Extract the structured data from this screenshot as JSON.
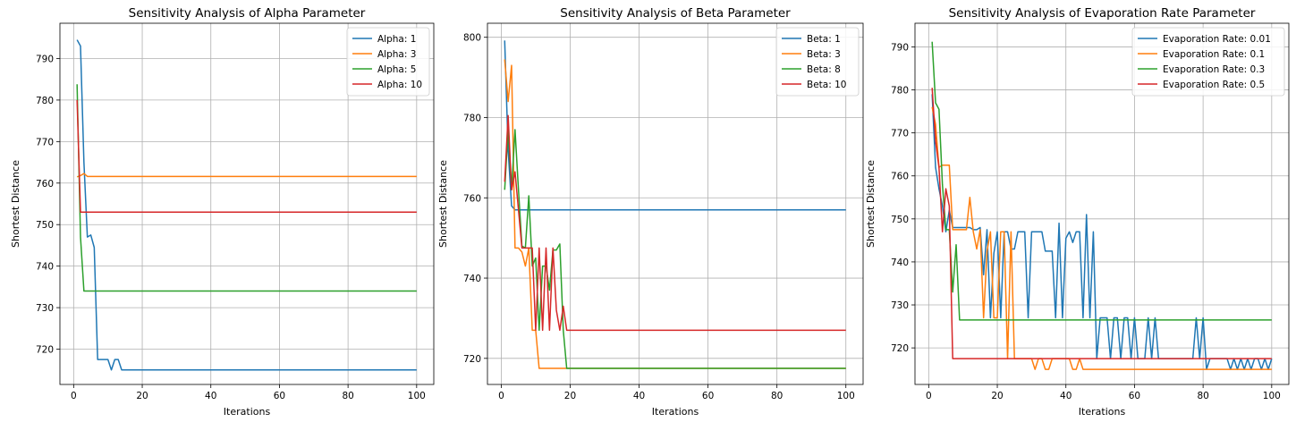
{
  "chart_data": [
    {
      "type": "line",
      "title": "Sensitivity Analysis of Alpha Parameter",
      "xlabel": "Iterations",
      "ylabel": "Shortest Distance",
      "xlim": [
        -4,
        105
      ],
      "ylim": [
        711.5,
        798.5
      ],
      "xticks": [
        0,
        20,
        40,
        60,
        80,
        100
      ],
      "yticks": [
        720,
        730,
        740,
        750,
        760,
        770,
        780,
        790
      ],
      "grid": true,
      "legend": "top-right",
      "series": [
        {
          "name": "Alpha: 1",
          "color": "#1f77b4",
          "points": [
            [
              1,
              794.5
            ],
            [
              2,
              793
            ],
            [
              3,
              765
            ],
            [
              4,
              747
            ],
            [
              5,
              747.5
            ],
            [
              6,
              744.5
            ],
            [
              7,
              717.5
            ],
            [
              8,
              717.5
            ],
            [
              9,
              717.5
            ],
            [
              10,
              717.5
            ],
            [
              11,
              715
            ],
            [
              12,
              717.5
            ],
            [
              13,
              717.5
            ],
            [
              14,
              715
            ],
            [
              100,
              715
            ]
          ]
        },
        {
          "name": "Alpha: 3",
          "color": "#ff7f0e",
          "points": [
            [
              1,
              761.5
            ],
            [
              2,
              761.8
            ],
            [
              3,
              762.3
            ],
            [
              4,
              761.6
            ],
            [
              100,
              761.6
            ]
          ]
        },
        {
          "name": "Alpha: 5",
          "color": "#2ca02c",
          "points": [
            [
              1,
              783.8
            ],
            [
              2,
              747
            ],
            [
              3,
              734
            ],
            [
              100,
              734
            ]
          ]
        },
        {
          "name": "Alpha: 10",
          "color": "#d62728",
          "points": [
            [
              1,
              780
            ],
            [
              2,
              753
            ],
            [
              100,
              753
            ]
          ]
        }
      ]
    },
    {
      "type": "line",
      "title": "Sensitivity Analysis of Beta Parameter",
      "xlabel": "Iterations",
      "ylabel": "Shortest Distance",
      "xlim": [
        -4,
        105
      ],
      "ylim": [
        713.5,
        803.5
      ],
      "xticks": [
        0,
        20,
        40,
        60,
        80,
        100
      ],
      "yticks": [
        720,
        740,
        760,
        780,
        800
      ],
      "grid": true,
      "legend": "top-right",
      "series": [
        {
          "name": "Beta: 1",
          "color": "#1f77b4",
          "points": [
            [
              1,
              799.2
            ],
            [
              2,
              772
            ],
            [
              3,
              758
            ],
            [
              4,
              757
            ],
            [
              100,
              757
            ]
          ]
        },
        {
          "name": "Beta: 3",
          "color": "#ff7f0e",
          "points": [
            [
              1,
              794.5
            ],
            [
              2,
              784
            ],
            [
              3,
              793
            ],
            [
              4,
              747.5
            ],
            [
              5,
              747.5
            ],
            [
              6,
              746.5
            ],
            [
              7,
              743
            ],
            [
              8,
              747.5
            ],
            [
              9,
              727
            ],
            [
              10,
              727
            ],
            [
              11,
              717.5
            ],
            [
              100,
              717.5
            ]
          ]
        },
        {
          "name": "Beta: 8",
          "color": "#2ca02c",
          "points": [
            [
              1,
              762
            ],
            [
              2,
              777
            ],
            [
              3,
              762
            ],
            [
              4,
              777
            ],
            [
              5,
              762
            ],
            [
              6,
              748
            ],
            [
              7,
              747.5
            ],
            [
              8,
              760.5
            ],
            [
              9,
              743
            ],
            [
              10,
              745
            ],
            [
              11,
              727
            ],
            [
              12,
              743
            ],
            [
              13,
              743
            ],
            [
              14,
              737
            ],
            [
              15,
              747
            ],
            [
              16,
              747
            ],
            [
              17,
              748.5
            ],
            [
              18,
              727
            ],
            [
              19,
              717.5
            ],
            [
              100,
              717.5
            ]
          ]
        },
        {
          "name": "Beta: 10",
          "color": "#d62728",
          "points": [
            [
              1,
              764
            ],
            [
              2,
              780.5
            ],
            [
              3,
              762
            ],
            [
              4,
              766.5
            ],
            [
              5,
              757
            ],
            [
              6,
              747.5
            ],
            [
              7,
              747.5
            ],
            [
              8,
              747.5
            ],
            [
              9,
              747.5
            ],
            [
              10,
              727
            ],
            [
              11,
              747.5
            ],
            [
              12,
              727
            ],
            [
              13,
              747.5
            ],
            [
              14,
              727
            ],
            [
              15,
              747.5
            ],
            [
              16,
              732
            ],
            [
              17,
              727
            ],
            [
              18,
              733
            ],
            [
              19,
              727
            ],
            [
              100,
              727
            ]
          ]
        }
      ]
    },
    {
      "type": "line",
      "title": "Sensitivity Analysis of Evaporation Rate Parameter",
      "xlabel": "Iterations",
      "ylabel": "Shortest Distance",
      "xlim": [
        -4,
        105
      ],
      "ylim": [
        711.5,
        795.5
      ],
      "xticks": [
        0,
        20,
        40,
        60,
        80,
        100
      ],
      "yticks": [
        720,
        730,
        740,
        750,
        760,
        770,
        780,
        790
      ],
      "grid": true,
      "legend": "top-right",
      "series": [
        {
          "name": "Evaporation Rate: 0.01",
          "color": "#1f77b4",
          "points": [
            [
              1,
              779
            ],
            [
              2,
              762
            ],
            [
              3,
              757
            ],
            [
              4,
              753
            ],
            [
              5,
              747
            ],
            [
              6,
              752
            ],
            [
              7,
              748
            ],
            [
              8,
              748
            ],
            [
              9,
              748
            ],
            [
              10,
              748
            ],
            [
              11,
              748
            ],
            [
              12,
              748
            ],
            [
              13,
              747.5
            ],
            [
              14,
              747.5
            ],
            [
              15,
              748
            ],
            [
              16,
              737
            ],
            [
              17,
              747.5
            ],
            [
              18,
              727
            ],
            [
              19,
              742
            ],
            [
              20,
              747
            ],
            [
              21,
              727
            ],
            [
              22,
              747
            ],
            [
              23,
              747
            ],
            [
              24,
              743
            ],
            [
              25,
              743
            ],
            [
              26,
              747
            ],
            [
              27,
              747
            ],
            [
              28,
              747
            ],
            [
              29,
              727
            ],
            [
              30,
              747
            ],
            [
              31,
              747
            ],
            [
              32,
              747
            ],
            [
              33,
              747
            ],
            [
              34,
              742.5
            ],
            [
              35,
              742.5
            ],
            [
              36,
              742.5
            ],
            [
              37,
              727
            ],
            [
              38,
              749
            ],
            [
              39,
              727
            ],
            [
              40,
              745.5
            ],
            [
              41,
              747
            ],
            [
              42,
              744.5
            ],
            [
              43,
              747
            ],
            [
              44,
              747
            ],
            [
              45,
              727
            ],
            [
              46,
              751
            ],
            [
              47,
              727
            ],
            [
              48,
              747
            ],
            [
              49,
              717.5
            ],
            [
              50,
              727
            ],
            [
              51,
              727
            ],
            [
              52,
              727
            ],
            [
              53,
              717.5
            ],
            [
              54,
              727
            ],
            [
              55,
              727
            ],
            [
              56,
              717.5
            ],
            [
              57,
              727
            ],
            [
              58,
              727
            ],
            [
              59,
              717.5
            ],
            [
              60,
              727
            ],
            [
              61,
              717.5
            ],
            [
              62,
              717.5
            ],
            [
              63,
              717.5
            ],
            [
              64,
              727
            ],
            [
              65,
              717.5
            ],
            [
              66,
              727
            ],
            [
              67,
              717.5
            ],
            [
              68,
              717.5
            ],
            [
              69,
              717.5
            ],
            [
              70,
              717.5
            ],
            [
              71,
              717.5
            ],
            [
              72,
              717.5
            ],
            [
              73,
              717.5
            ],
            [
              74,
              717.5
            ],
            [
              75,
              717.5
            ],
            [
              76,
              717.5
            ],
            [
              77,
              717.5
            ],
            [
              78,
              727
            ],
            [
              79,
              717.5
            ],
            [
              80,
              727
            ],
            [
              81,
              715
            ],
            [
              82,
              717.5
            ],
            [
              83,
              717.5
            ],
            [
              84,
              717.5
            ],
            [
              85,
              717.5
            ],
            [
              86,
              717.5
            ],
            [
              87,
              717.5
            ],
            [
              88,
              715
            ],
            [
              89,
              717.5
            ],
            [
              90,
              715
            ],
            [
              91,
              717.5
            ],
            [
              92,
              715
            ],
            [
              93,
              717.5
            ],
            [
              94,
              715
            ],
            [
              95,
              717.5
            ],
            [
              96,
              717.5
            ],
            [
              97,
              715
            ],
            [
              98,
              717.5
            ],
            [
              99,
              715
            ],
            [
              100,
              717.5
            ]
          ]
        },
        {
          "name": "Evaporation Rate: 0.1",
          "color": "#ff7f0e",
          "points": [
            [
              1,
              776
            ],
            [
              2,
              772
            ],
            [
              3,
              762
            ],
            [
              4,
              762.5
            ],
            [
              5,
              762.5
            ],
            [
              6,
              762.5
            ],
            [
              7,
              747.5
            ],
            [
              8,
              747.5
            ],
            [
              9,
              747.5
            ],
            [
              10,
              747.5
            ],
            [
              11,
              747.5
            ],
            [
              12,
              755
            ],
            [
              13,
              747
            ],
            [
              14,
              743
            ],
            [
              15,
              747.5
            ],
            [
              16,
              727
            ],
            [
              17,
              742.5
            ],
            [
              18,
              747
            ],
            [
              19,
              727
            ],
            [
              20,
              727
            ],
            [
              21,
              747
            ],
            [
              22,
              747
            ],
            [
              23,
              717.5
            ],
            [
              24,
              747
            ],
            [
              25,
              717.5
            ],
            [
              26,
              717.5
            ],
            [
              27,
              717.5
            ],
            [
              28,
              717.5
            ],
            [
              29,
              717.5
            ],
            [
              30,
              717.5
            ],
            [
              31,
              715
            ],
            [
              32,
              717.5
            ],
            [
              33,
              717.5
            ],
            [
              34,
              715
            ],
            [
              35,
              715
            ],
            [
              36,
              717.5
            ],
            [
              37,
              717.5
            ],
            [
              38,
              717.5
            ],
            [
              39,
              717.5
            ],
            [
              40,
              717.5
            ],
            [
              41,
              717.5
            ],
            [
              42,
              715
            ],
            [
              43,
              715
            ],
            [
              44,
              717.5
            ],
            [
              45,
              715
            ],
            [
              100,
              715
            ]
          ]
        },
        {
          "name": "Evaporation Rate: 0.3",
          "color": "#2ca02c",
          "points": [
            [
              1,
              791.2
            ],
            [
              2,
              777
            ],
            [
              3,
              775.5
            ],
            [
              4,
              758
            ],
            [
              5,
              747.5
            ],
            [
              6,
              747.5
            ],
            [
              7,
              733
            ],
            [
              8,
              744
            ],
            [
              9,
              726.5
            ],
            [
              100,
              726.5
            ]
          ]
        },
        {
          "name": "Evaporation Rate: 0.5",
          "color": "#d62728",
          "points": [
            [
              1,
              780.5
            ],
            [
              2,
              768
            ],
            [
              3,
              762
            ],
            [
              4,
              747
            ],
            [
              5,
              757
            ],
            [
              6,
              753
            ],
            [
              7,
              717.5
            ],
            [
              100,
              717.5
            ]
          ]
        }
      ]
    }
  ]
}
